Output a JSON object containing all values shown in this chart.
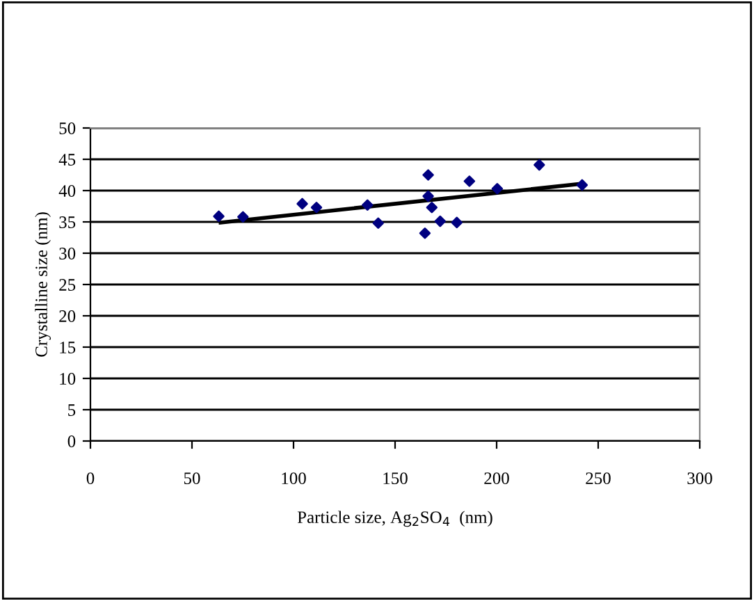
{
  "chart_data": {
    "type": "scatter",
    "xlabel": "Particle size, Ag$_{2}$SO$_{4}$  (nm)",
    "ylabel": "Crystalline size (nm)",
    "xlim": [
      0,
      300
    ],
    "xticks": [
      0,
      50,
      100,
      150,
      200,
      250,
      300
    ],
    "ylim": [
      0,
      50
    ],
    "yticks": [
      0,
      5,
      10,
      15,
      20,
      25,
      30,
      35,
      40,
      45,
      50
    ],
    "grid": "y",
    "legend": false,
    "series": [
      {
        "marker": "diamond",
        "color": "#000080",
        "x": [
          63.2,
          75.1,
          104.3,
          111.3,
          136.4,
          141.7,
          164.7,
          166.3,
          166.3,
          168.1,
          172.2,
          180.4,
          186.6,
          200.3,
          221,
          242.1
        ],
        "values": [
          35.9,
          35.8,
          37.9,
          37.3,
          37.7,
          34.8,
          33.2,
          42.5,
          39.1,
          37.3,
          35.1,
          34.9,
          41.5,
          40.3,
          44.1,
          40.9
        ]
      },
      {
        "type": "line",
        "marker": "none",
        "color": "#000000",
        "x": [
          64.1,
          242.1
        ],
        "values": [
          34.9,
          41.1
        ]
      }
    ]
  }
}
